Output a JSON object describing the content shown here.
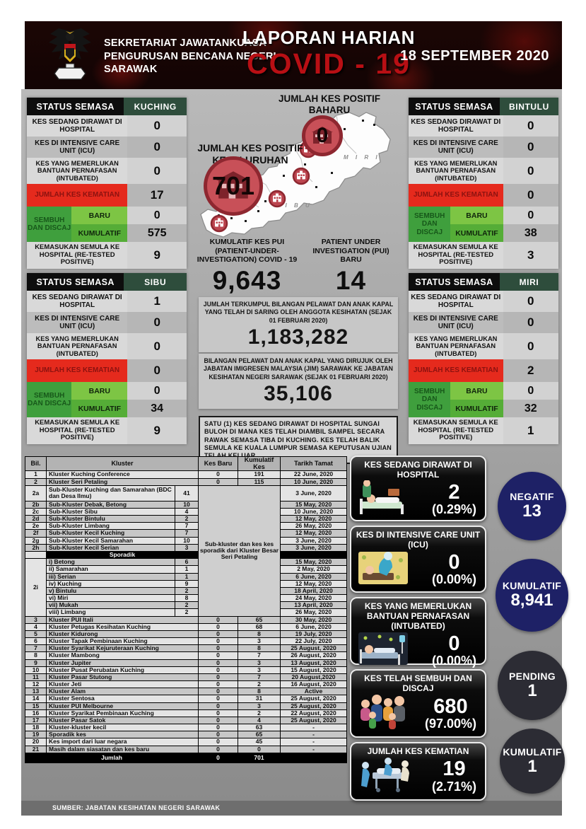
{
  "header": {
    "org_line1": "SEKRETARIAT JAWATANKUASA",
    "org_line2": "PENGURUSAN BENCANA NEGERI",
    "org_line3": "SARAWAK",
    "title_line1": "LAPORAN HARIAN",
    "title_line2": "COVID - 19",
    "date": "18 SEPTEMBER 2020",
    "logo_icon": "sarawak-crest"
  },
  "panel_labels": {
    "status": "STATUS SEMASA",
    "hospital": "KES SEDANG DIRAWAT DI HOSPITAL",
    "icu": "KES DI INTENSIVE CARE UNIT (ICU)",
    "intubated": "KES YANG MEMERLUKAN BANTUAN PERNAFASAN (INTUBATED)",
    "kematian": "JUMLAH KES KEMATIAN",
    "sembuh": "SEMBUH DAN DISCAJ",
    "baru": "BARU",
    "kumulatif": "KUMULATIF",
    "readmit": "KEMASUKAN SEMULA KE HOSPITAL (RE-TESTED POSITIVE)"
  },
  "panels": [
    {
      "city": "KUCHING",
      "hospital": "0",
      "icu": "0",
      "intubated": "0",
      "kematian": "17",
      "baru": "0",
      "kumulatif": "575",
      "readmit": "9"
    },
    {
      "city": "BINTULU",
      "hospital": "0",
      "icu": "0",
      "intubated": "0",
      "kematian": "0",
      "baru": "0",
      "kumulatif": "38",
      "readmit": "3"
    },
    {
      "city": "SIBU",
      "hospital": "1",
      "icu": "0",
      "intubated": "0",
      "kematian": "0",
      "baru": "0",
      "kumulatif": "34",
      "readmit": "9"
    },
    {
      "city": "MIRI",
      "hospital": "0",
      "icu": "0",
      "intubated": "0",
      "kematian": "2",
      "baru": "0",
      "kumulatif": "32",
      "readmit": "1"
    }
  ],
  "center": {
    "baharu_title": "JUMLAH KES POSITIF BAHARU",
    "baharu_value": "0",
    "keseluruhan_title": "JUMLAH KES POSITIF KESELURUHAN",
    "keseluruhan_value": "701",
    "map_label_miri": "M I R I",
    "map_label_sibu": "S I B U",
    "pui_kumulatif_label": "KUMULATIF KES PUI (PATIENT-UNDER-INVESTIGATION) COVID - 19",
    "pui_kumulatif_value": "9,643",
    "pui_baru_label": "PATIENT UNDER INVESTIGATION (PUI) BARU",
    "pui_baru_value": "14",
    "screening_text": "JUMLAH TERKUMPUL BILANGAN PELAWAT DAN ANAK KAPAL YANG TELAH DI SARING OLEH ANGGOTA KESIHATAN (SEJAK 01 FEBRUARI 2020)",
    "screening_value": "1,183,282",
    "jim_text": "BILANGAN PELAWAT DAN ANAK KAPAL YANG DIRUJUK OLEH JABATAN IMIGRESEN MALAYSIA (JIM) SARAWAK KE JABATAN KESIHATAN NEGERI SARAWAK (SEJAK 01 FEBRUARI 2020)",
    "jim_value": "35,106",
    "note": "SATU (1) KES SEDANG DIRAWAT DI HOSPITAL SUNGAI BULOH DI MANA KES TELAH DIAMBIL SAMPEL SECARA RAWAK SEMASA TIBA DI KUCHING. KES TELAH BALIK SEMULA KE KUALA LUMPUR SEMASA KEPUTUSAN UJIAN TELAH KELUAR."
  },
  "table": {
    "headers": {
      "bil": "Bil.",
      "kluster": "Kluster",
      "kes_baru": "Kes Baru",
      "kumulatif_kes": "Kumulatif Kes",
      "tarikh": "Tarikh Tamat"
    },
    "merged_note": "Sub-kluster dan kes kes sporadik dari Kluster Besar Seri Petaling",
    "sporadik_label": "Sporadik",
    "sporadik_bil": "2i",
    "rows": [
      {
        "k": "n",
        "bil": "1",
        "name": "Kluster Kuching Conference",
        "baru": "0",
        "kum": "191",
        "date": "22 June, 2020"
      },
      {
        "k": "n",
        "bil": "2",
        "name": "Kluster Seri Petaling",
        "baru": "0",
        "kum": "115",
        "date": "10 June, 2020"
      },
      {
        "k": "s",
        "bil": "2a",
        "name": "Sub-Kluster Kuching dan Samarahan (BDC dan Desa Ilmu)",
        "val": "41",
        "date": "3 June, 2020"
      },
      {
        "k": "s",
        "bil": "2b",
        "name": "Sub-Kluster Debak, Betong",
        "val": "10",
        "date": "15 May, 2020"
      },
      {
        "k": "s",
        "bil": "2c",
        "name": "Sub-Kluster Sibu",
        "val": "4",
        "date": "10 June, 2020"
      },
      {
        "k": "s",
        "bil": "2d",
        "name": "Sub-Kluster Bintulu",
        "val": "2",
        "date": "12 May, 2020"
      },
      {
        "k": "s",
        "bil": "2e",
        "name": "Sub-Kluster Limbang",
        "val": "7",
        "date": "26 May, 2020"
      },
      {
        "k": "s",
        "bil": "2f",
        "name": "Sub-Kluster Kecil Kuching",
        "val": "7",
        "date": "12 May, 2020"
      },
      {
        "k": "s",
        "bil": "2g",
        "name": "Sub-Kluster Kecil Samarahan",
        "val": "10",
        "date": "3 June, 2020"
      },
      {
        "k": "s",
        "bil": "2h",
        "name": "Sub-Kluster Kecil Serian",
        "val": "3",
        "date": "3 June, 2020"
      },
      {
        "k": "sphead"
      },
      {
        "k": "sp",
        "name": "i) Betong",
        "val": "6",
        "date": "15 May, 2020"
      },
      {
        "k": "sp",
        "name": "ii) Samarahan",
        "val": "1",
        "date": "2 May, 2020"
      },
      {
        "k": "sp",
        "name": "iii) Serian",
        "val": "1",
        "date": "6 June, 2020"
      },
      {
        "k": "sp",
        "name": "iv) Kuching",
        "val": "9",
        "date": "12 May, 2020"
      },
      {
        "k": "sp",
        "name": "v) Bintulu",
        "val": "2",
        "date": "18 April, 2020"
      },
      {
        "k": "sp",
        "name": "vi) Miri",
        "val": "8",
        "date": "24 May, 2020"
      },
      {
        "k": "sp",
        "name": "vii) Mukah",
        "val": "2",
        "date": "13 April, 2020"
      },
      {
        "k": "sp",
        "name": "viii) Limbang",
        "val": "2",
        "date": "26 May, 2020"
      },
      {
        "k": "n",
        "bil": "3",
        "name": "Kluster PUI Itali",
        "baru": "0",
        "kum": "65",
        "date": "30 May, 2020"
      },
      {
        "k": "n",
        "bil": "4",
        "name": "Kluster Petugas Kesihatan Kuching",
        "baru": "0",
        "kum": "68",
        "date": "6 June, 2020"
      },
      {
        "k": "n",
        "bil": "5",
        "name": "Kluster Kidurong",
        "baru": "0",
        "kum": "8",
        "date": "19 July, 2020"
      },
      {
        "k": "n",
        "bil": "6",
        "name": "Kluster Tapak Pembinaan Kuching",
        "baru": "0",
        "kum": "3",
        "date": "22 July, 2020"
      },
      {
        "k": "n",
        "bil": "7",
        "name": "Kluster Syarikat Kejuruteraan Kuching",
        "baru": "0",
        "kum": "8",
        "date": "25 August, 2020"
      },
      {
        "k": "n",
        "bil": "8",
        "name": "Kluster Mambong",
        "baru": "0",
        "kum": "7",
        "date": "26 August, 2020"
      },
      {
        "k": "n",
        "bil": "9",
        "name": "Kluster Jupiter",
        "baru": "0",
        "kum": "3",
        "date": "13 August, 2020"
      },
      {
        "k": "n",
        "bil": "10",
        "name": "Kluster Pusat Perubatan Kuching",
        "baru": "0",
        "kum": "3",
        "date": "15 August, 2020"
      },
      {
        "k": "n",
        "bil": "11",
        "name": "Kluster Pasar Stutong",
        "baru": "0",
        "kum": "7",
        "date": "20 August,2020"
      },
      {
        "k": "n",
        "bil": "12",
        "name": "Kluster Jeti",
        "baru": "0",
        "kum": "2",
        "date": "16 August, 2020"
      },
      {
        "k": "n",
        "bil": "13",
        "name": "Kluster Alam",
        "baru": "0",
        "kum": "8",
        "date": "Active"
      },
      {
        "k": "n",
        "bil": "14",
        "name": "Kluster Sentosa",
        "baru": "0",
        "kum": "31",
        "date": "25 August, 2020"
      },
      {
        "k": "n",
        "bil": "15",
        "name": "Kluster PUI Melbourne",
        "baru": "0",
        "kum": "3",
        "date": "25 August, 2020"
      },
      {
        "k": "n",
        "bil": "16",
        "name": "Kluster Syarikat Pembinaan Kuching",
        "baru": "0",
        "kum": "2",
        "date": "22 August, 2020"
      },
      {
        "k": "n",
        "bil": "17",
        "name": "Kluster Pasar Satok",
        "baru": "0",
        "kum": "4",
        "date": "25 August, 2020"
      },
      {
        "k": "n",
        "bil": "18",
        "name": "Kluster-kluster kecil",
        "baru": "0",
        "kum": "63",
        "date": "-"
      },
      {
        "k": "n",
        "bil": "19",
        "name": "Sporadik kes",
        "baru": "0",
        "kum": "65",
        "date": "-"
      },
      {
        "k": "n",
        "bil": "20",
        "name": "Kes import dari luar negara",
        "baru": "0",
        "kum": "45",
        "date": "-"
      },
      {
        "k": "n",
        "bil": "21",
        "name": "Masih dalam siasatan dan kes baru",
        "baru": "0",
        "kum": "0",
        "date": "-"
      }
    ],
    "jumlah_label": "Jumlah",
    "jumlah_baru": "0",
    "jumlah_kumulatif": "701"
  },
  "cards": [
    {
      "title": "KES SEDANG DIRAWAT DI HOSPITAL",
      "value": "2",
      "pct": "(0.29%)",
      "icon": "hospital-bed"
    },
    {
      "title": "KES DI INTENSIVE CARE UNIT (ICU)",
      "value": "0",
      "pct": "(0.00%)",
      "icon": "icu-care"
    },
    {
      "title": "KES YANG MEMERLUKAN BANTUAN PERNAFASAN (INTUBATED)",
      "value": "0",
      "pct": "(0.00%)",
      "icon": "intubated-bed"
    },
    {
      "title": "KES TELAH SEMBUH DAN DISCAJ",
      "value": "680",
      "pct": "(97.00%)",
      "icon": "recovered-group"
    },
    {
      "title": "JUMLAH KES KEMATIAN",
      "value": "19",
      "pct": "(2.71%)",
      "icon": "death-gurney"
    }
  ],
  "circles": [
    {
      "label": "NEGATIF",
      "value": "13",
      "color": "#1e2166"
    },
    {
      "label": "KUMULATIF",
      "value": "8,941",
      "color": "#1e2166"
    },
    {
      "label": "PENDING",
      "value": "1",
      "color": "#2c2c34"
    },
    {
      "label": "KUMULATIF",
      "value": "1",
      "color": "#2c2c34"
    }
  ],
  "footer": "SUMBER: JABATAN KESIHATAN NEGERI SARAWAK"
}
